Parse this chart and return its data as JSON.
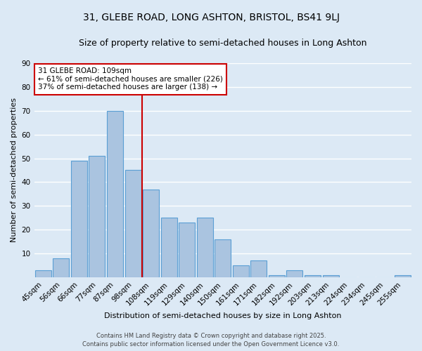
{
  "title": "31, GLEBE ROAD, LONG ASHTON, BRISTOL, BS41 9LJ",
  "subtitle": "Size of property relative to semi-detached houses in Long Ashton",
  "xlabel": "Distribution of semi-detached houses by size in Long Ashton",
  "ylabel": "Number of semi-detached properties",
  "footer": "Contains HM Land Registry data © Crown copyright and database right 2025.\nContains public sector information licensed under the Open Government Licence v3.0.",
  "categories": [
    "45sqm",
    "56sqm",
    "66sqm",
    "77sqm",
    "87sqm",
    "98sqm",
    "108sqm",
    "119sqm",
    "129sqm",
    "140sqm",
    "150sqm",
    "161sqm",
    "171sqm",
    "182sqm",
    "192sqm",
    "203sqm",
    "213sqm",
    "224sqm",
    "234sqm",
    "245sqm",
    "255sqm"
  ],
  "values": [
    3,
    8,
    49,
    51,
    70,
    45,
    37,
    25,
    23,
    25,
    16,
    5,
    7,
    1,
    3,
    1,
    1,
    0,
    0,
    0,
    1
  ],
  "bar_color": "#aac4e0",
  "bar_edge_color": "#5a9fd4",
  "vline_color": "#cc0000",
  "annotation_title": "31 GLEBE ROAD: 109sqm",
  "annotation_line1": "← 61% of semi-detached houses are smaller (226)",
  "annotation_line2": "37% of semi-detached houses are larger (138) →",
  "annotation_box_edge": "#cc0000",
  "ylim": [
    0,
    90
  ],
  "yticks": [
    0,
    10,
    20,
    30,
    40,
    50,
    60,
    70,
    80,
    90
  ],
  "background_color": "#dce9f5",
  "plot_bg_color": "#dce9f5",
  "grid_color": "#ffffff",
  "title_fontsize": 10,
  "subtitle_fontsize": 9,
  "axis_label_fontsize": 8,
  "tick_fontsize": 7.5,
  "annotation_fontsize": 7.5,
  "footer_fontsize": 6
}
